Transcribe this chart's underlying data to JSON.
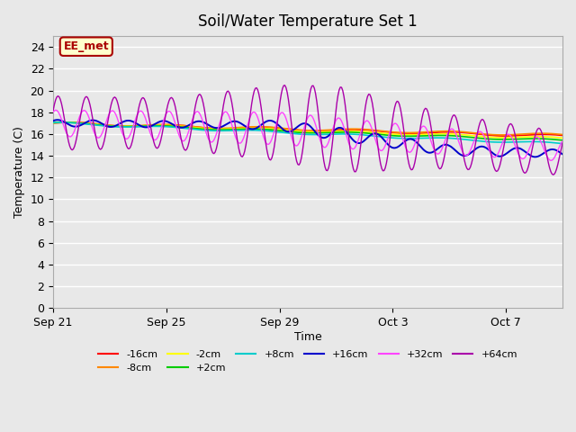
{
  "title": "Soil/Water Temperature Set 1",
  "xlabel": "Time",
  "ylabel": "Temperature (C)",
  "ylim": [
    0,
    25
  ],
  "bg_color": "#e8e8e8",
  "grid_color": "#ffffff",
  "annotation_text": "EE_met",
  "annotation_bg": "#ffffcc",
  "annotation_border": "#aa0000",
  "series": [
    {
      "label": "-16cm",
      "color": "#ff0000"
    },
    {
      "label": "-8cm",
      "color": "#ff8800"
    },
    {
      "label": "-2cm",
      "color": "#ffff00"
    },
    {
      "label": "+2cm",
      "color": "#00cc00"
    },
    {
      "label": "+8cm",
      "color": "#00cccc"
    },
    {
      "label": "+16cm",
      "color": "#0000cc"
    },
    {
      "label": "+32cm",
      "color": "#ff44ff"
    },
    {
      "label": "+64cm",
      "color": "#aa00aa"
    }
  ],
  "x_tick_labels": [
    "Sep 21",
    "Sep 25",
    "Sep 29",
    "Oct 3",
    "Oct 7"
  ],
  "x_tick_positions": [
    0,
    4,
    8,
    12,
    16
  ]
}
